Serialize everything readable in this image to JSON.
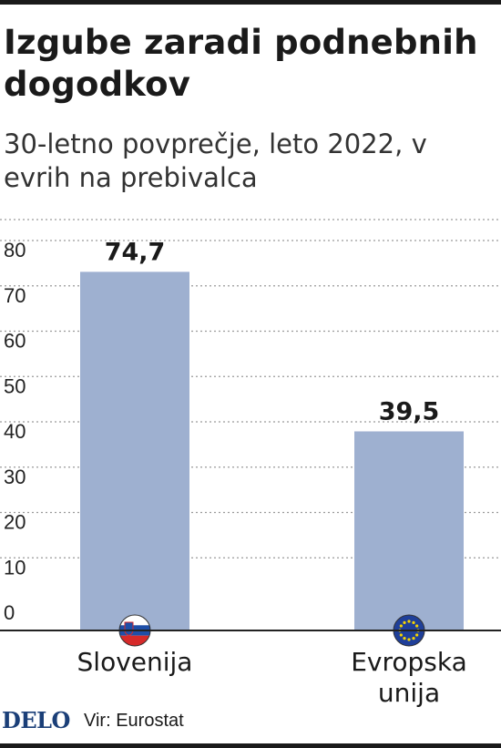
{
  "title": "Izgube zaradi podnebnih dogodkov",
  "subtitle": "30-letno povprečje, leto 2022, v evrih na prebivalca",
  "footer": {
    "logo": "DELO",
    "source": "Vir: Eurostat"
  },
  "colors": {
    "bar": "#9eb0d0",
    "grid": "#9a9a9a",
    "axis": "#222222"
  },
  "chart_data": {
    "type": "bar",
    "title": "Izgube zaradi podnebnih dogodkov",
    "subtitle": "30-letno povprečje, leto 2022, v evrih na prebivalca",
    "xlabel": "",
    "ylabel": "",
    "categories": [
      "Slovenija",
      "Evropska unija"
    ],
    "values": [
      74.7,
      39.5
    ],
    "value_labels": [
      "74,7",
      "39,5"
    ],
    "category_icons": [
      "slovenia-flag-icon",
      "eu-flag-icon"
    ],
    "ylim": [
      0,
      80
    ],
    "yticks": [
      0,
      10,
      20,
      30,
      40,
      50,
      60,
      70,
      80
    ],
    "grid": true,
    "legend": "none"
  }
}
